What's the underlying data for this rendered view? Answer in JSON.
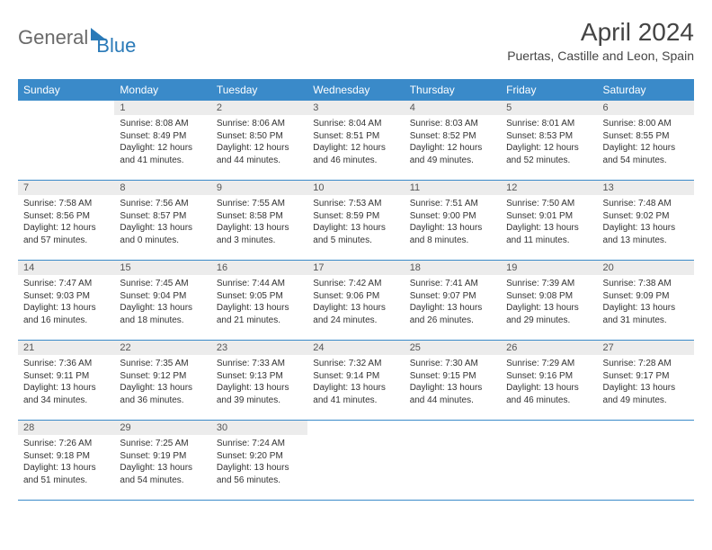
{
  "brand": {
    "text_gray": "General",
    "text_blue": "Blue"
  },
  "title": "April 2024",
  "location": "Puertas, Castille and Leon, Spain",
  "colors": {
    "header_bg": "#3a8ac9",
    "header_text": "#ffffff",
    "day_num_bg": "#ececec",
    "border": "#3a8ac9",
    "brand_gray": "#6a6a6a",
    "brand_blue": "#2a7ab8"
  },
  "weekdays": [
    "Sunday",
    "Monday",
    "Tuesday",
    "Wednesday",
    "Thursday",
    "Friday",
    "Saturday"
  ],
  "weeks": [
    [
      {
        "day": "",
        "sunrise": "",
        "sunset": "",
        "daylight": ""
      },
      {
        "day": "1",
        "sunrise": "Sunrise: 8:08 AM",
        "sunset": "Sunset: 8:49 PM",
        "daylight": "Daylight: 12 hours and 41 minutes."
      },
      {
        "day": "2",
        "sunrise": "Sunrise: 8:06 AM",
        "sunset": "Sunset: 8:50 PM",
        "daylight": "Daylight: 12 hours and 44 minutes."
      },
      {
        "day": "3",
        "sunrise": "Sunrise: 8:04 AM",
        "sunset": "Sunset: 8:51 PM",
        "daylight": "Daylight: 12 hours and 46 minutes."
      },
      {
        "day": "4",
        "sunrise": "Sunrise: 8:03 AM",
        "sunset": "Sunset: 8:52 PM",
        "daylight": "Daylight: 12 hours and 49 minutes."
      },
      {
        "day": "5",
        "sunrise": "Sunrise: 8:01 AM",
        "sunset": "Sunset: 8:53 PM",
        "daylight": "Daylight: 12 hours and 52 minutes."
      },
      {
        "day": "6",
        "sunrise": "Sunrise: 8:00 AM",
        "sunset": "Sunset: 8:55 PM",
        "daylight": "Daylight: 12 hours and 54 minutes."
      }
    ],
    [
      {
        "day": "7",
        "sunrise": "Sunrise: 7:58 AM",
        "sunset": "Sunset: 8:56 PM",
        "daylight": "Daylight: 12 hours and 57 minutes."
      },
      {
        "day": "8",
        "sunrise": "Sunrise: 7:56 AM",
        "sunset": "Sunset: 8:57 PM",
        "daylight": "Daylight: 13 hours and 0 minutes."
      },
      {
        "day": "9",
        "sunrise": "Sunrise: 7:55 AM",
        "sunset": "Sunset: 8:58 PM",
        "daylight": "Daylight: 13 hours and 3 minutes."
      },
      {
        "day": "10",
        "sunrise": "Sunrise: 7:53 AM",
        "sunset": "Sunset: 8:59 PM",
        "daylight": "Daylight: 13 hours and 5 minutes."
      },
      {
        "day": "11",
        "sunrise": "Sunrise: 7:51 AM",
        "sunset": "Sunset: 9:00 PM",
        "daylight": "Daylight: 13 hours and 8 minutes."
      },
      {
        "day": "12",
        "sunrise": "Sunrise: 7:50 AM",
        "sunset": "Sunset: 9:01 PM",
        "daylight": "Daylight: 13 hours and 11 minutes."
      },
      {
        "day": "13",
        "sunrise": "Sunrise: 7:48 AM",
        "sunset": "Sunset: 9:02 PM",
        "daylight": "Daylight: 13 hours and 13 minutes."
      }
    ],
    [
      {
        "day": "14",
        "sunrise": "Sunrise: 7:47 AM",
        "sunset": "Sunset: 9:03 PM",
        "daylight": "Daylight: 13 hours and 16 minutes."
      },
      {
        "day": "15",
        "sunrise": "Sunrise: 7:45 AM",
        "sunset": "Sunset: 9:04 PM",
        "daylight": "Daylight: 13 hours and 18 minutes."
      },
      {
        "day": "16",
        "sunrise": "Sunrise: 7:44 AM",
        "sunset": "Sunset: 9:05 PM",
        "daylight": "Daylight: 13 hours and 21 minutes."
      },
      {
        "day": "17",
        "sunrise": "Sunrise: 7:42 AM",
        "sunset": "Sunset: 9:06 PM",
        "daylight": "Daylight: 13 hours and 24 minutes."
      },
      {
        "day": "18",
        "sunrise": "Sunrise: 7:41 AM",
        "sunset": "Sunset: 9:07 PM",
        "daylight": "Daylight: 13 hours and 26 minutes."
      },
      {
        "day": "19",
        "sunrise": "Sunrise: 7:39 AM",
        "sunset": "Sunset: 9:08 PM",
        "daylight": "Daylight: 13 hours and 29 minutes."
      },
      {
        "day": "20",
        "sunrise": "Sunrise: 7:38 AM",
        "sunset": "Sunset: 9:09 PM",
        "daylight": "Daylight: 13 hours and 31 minutes."
      }
    ],
    [
      {
        "day": "21",
        "sunrise": "Sunrise: 7:36 AM",
        "sunset": "Sunset: 9:11 PM",
        "daylight": "Daylight: 13 hours and 34 minutes."
      },
      {
        "day": "22",
        "sunrise": "Sunrise: 7:35 AM",
        "sunset": "Sunset: 9:12 PM",
        "daylight": "Daylight: 13 hours and 36 minutes."
      },
      {
        "day": "23",
        "sunrise": "Sunrise: 7:33 AM",
        "sunset": "Sunset: 9:13 PM",
        "daylight": "Daylight: 13 hours and 39 minutes."
      },
      {
        "day": "24",
        "sunrise": "Sunrise: 7:32 AM",
        "sunset": "Sunset: 9:14 PM",
        "daylight": "Daylight: 13 hours and 41 minutes."
      },
      {
        "day": "25",
        "sunrise": "Sunrise: 7:30 AM",
        "sunset": "Sunset: 9:15 PM",
        "daylight": "Daylight: 13 hours and 44 minutes."
      },
      {
        "day": "26",
        "sunrise": "Sunrise: 7:29 AM",
        "sunset": "Sunset: 9:16 PM",
        "daylight": "Daylight: 13 hours and 46 minutes."
      },
      {
        "day": "27",
        "sunrise": "Sunrise: 7:28 AM",
        "sunset": "Sunset: 9:17 PM",
        "daylight": "Daylight: 13 hours and 49 minutes."
      }
    ],
    [
      {
        "day": "28",
        "sunrise": "Sunrise: 7:26 AM",
        "sunset": "Sunset: 9:18 PM",
        "daylight": "Daylight: 13 hours and 51 minutes."
      },
      {
        "day": "29",
        "sunrise": "Sunrise: 7:25 AM",
        "sunset": "Sunset: 9:19 PM",
        "daylight": "Daylight: 13 hours and 54 minutes."
      },
      {
        "day": "30",
        "sunrise": "Sunrise: 7:24 AM",
        "sunset": "Sunset: 9:20 PM",
        "daylight": "Daylight: 13 hours and 56 minutes."
      },
      {
        "day": "",
        "sunrise": "",
        "sunset": "",
        "daylight": ""
      },
      {
        "day": "",
        "sunrise": "",
        "sunset": "",
        "daylight": ""
      },
      {
        "day": "",
        "sunrise": "",
        "sunset": "",
        "daylight": ""
      },
      {
        "day": "",
        "sunrise": "",
        "sunset": "",
        "daylight": ""
      }
    ]
  ]
}
